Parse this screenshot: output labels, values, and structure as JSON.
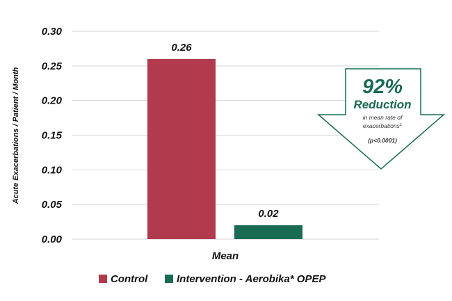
{
  "chart_data": {
    "type": "bar",
    "categories": [
      "Mean"
    ],
    "series": [
      {
        "name": "Control",
        "values": [
          0.26
        ],
        "color": "#b23a4d"
      },
      {
        "name": "Intervention - Aerobika* OPEP",
        "values": [
          0.02
        ],
        "color": "#1a6b53"
      }
    ],
    "data_labels": [
      "0.26",
      "0.02"
    ],
    "ylabel": "Acute Exacerbations / Patient / Month",
    "xlabel": "",
    "ylim": [
      0,
      0.3
    ],
    "yticks": [
      "0.00",
      "0.05",
      "0.10",
      "0.15",
      "0.20",
      "0.25",
      "0.30"
    ],
    "grid": true,
    "legend_position": "bottom"
  },
  "callout": {
    "percent": "92%",
    "headline": "Reduction",
    "line1": "in mean rate of",
    "line2": "exacerbations",
    "footnote_mark": "1",
    "pvalue": "(p<0.0001)",
    "color": "#1a6b53"
  }
}
